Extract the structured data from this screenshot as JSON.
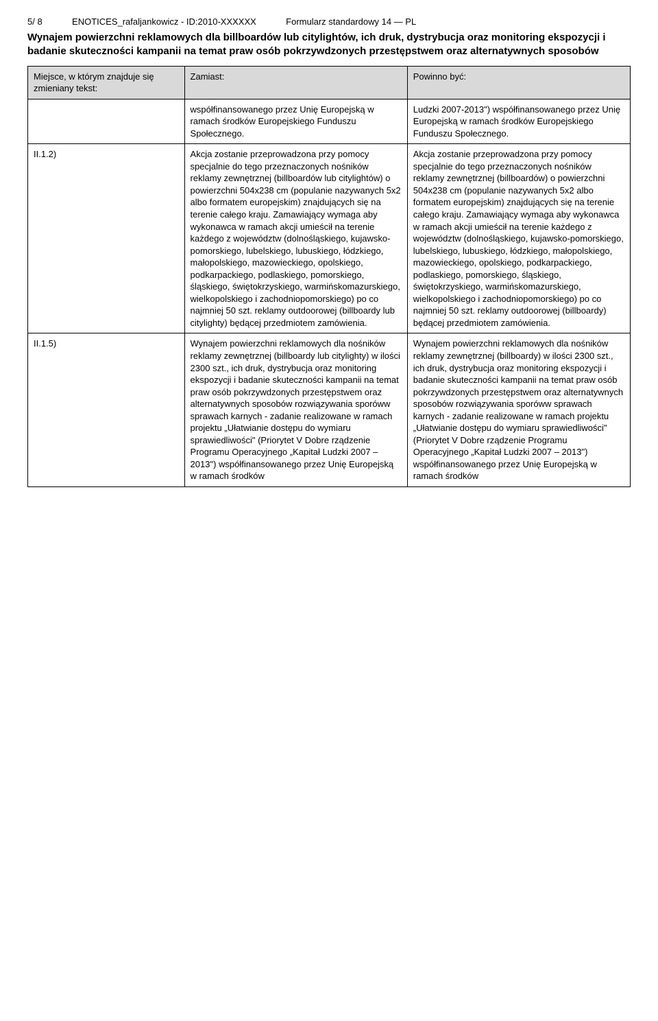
{
  "header": {
    "pageinfo": "5/ 8",
    "docref": "ENOTICES_rafaljankowicz - ID:2010-XXXXXX",
    "formlabel": "Formularz standardowy 14 — PL",
    "title": "Wynajem powierzchni reklamowych dla billboardów lub citylightów, ich druk, dystrybucja oraz monitoring ekspozycji i badanie skuteczności kampanii na temat praw osób pokrzywdzonych przestępstwem oraz alternatywnych sposobów"
  },
  "table": {
    "columns": [
      "Miejsce, w którym znajduje się zmieniany tekst:",
      "Zamiast:",
      "Powinno być:"
    ],
    "rows": [
      {
        "place": "",
        "instead": "współfinansowanego przez Unię Europejską w ramach środków Europejskiego Funduszu Społecznego.",
        "should": "Ludzki 2007-2013\") współfinansowanego przez Unię Europejską w ramach środków Europejskiego Funduszu Społecznego."
      },
      {
        "place": "II.1.2)",
        "instead": "Akcja zostanie przeprowadzona przy pomocy specjalnie do tego przeznaczonych nośników reklamy\nzewnętrznej (billboardów lub citylightów) o powierzchni 504x238 cm (populanie nazywanych 5x2 albo formatem europejskim) znajdujących się na terenie całego kraju. Zamawiający wymaga aby\nwykonawca w ramach akcji umieścił\nna terenie każdego z województw\n(dolnośląskiego, kujawsko-pomorskiego,\nlubelskiego, lubuskiego, łódzkiego,\nmałopolskiego, mazowieckiego, opolskiego, podkarpackiego, podlaskiego, pomorskiego, śląskiego, świętokrzyskiego, warmińskomazurskiego, wielkopolskiego i\nzachodniopomorskiego) po co najmniej\n50 szt. reklamy outdoorowej (billboardy\nlub citylighty) będącej przedmiotem\nzamówienia.",
        "should": "Akcja zostanie przeprowadzona przy pomocy specjalnie do tego przeznaczonych nośników reklamy\nzewnętrznej (billboardów) o powierzchni 504x238 cm (populanie nazywanych 5x2\nalbo formatem europejskim) znajdujących się na terenie całego kraju. Zamawiający wymaga aby wykonawca w ramach akcji umieścił na terenie każdego z województw (dolnośląskiego, kujawsko-pomorskiego, lubelskiego, lubuskiego, łódzkiego, małopolskiego, mazowieckiego, opolskiego, podkarpackiego, podlaskiego, pomorskiego, śląskiego, świętokrzyskiego, warmińskomazurskiego, wielkopolskiego i\nzachodniopomorskiego) po co najmniej\n50 szt. reklamy outdoorowej (billboardy) będącej przedmiotem\nzamówienia."
      },
      {
        "place": "II.1.5)",
        "instead": "Wynajem powierzchni reklamowych dla nośników reklamy zewnętrznej (billboardy lub citylighty) w ilości 2300 szt., ich druk, dystrybucja oraz monitoring ekspozycji i badanie skuteczności kampanii na temat praw osób pokrzywdzonych przestępstwem oraz alternatywnych sposobów rozwiązywania sporóww sprawach karnych - zadanie realizowane w ramach projektu „Ułatwianie dostępu do wymiaru sprawiedliwości\" (Priorytet V Dobre rządzenie Programu Operacyjnego „Kapitał Ludzki 2007 – 2013\") współfinansowanego przez Unię Europejską w ramach środków",
        "should": "Wynajem powierzchni reklamowych dla nośników reklamy zewnętrznej (billboardy) w ilości 2300 szt., ich druk, dystrybucja oraz monitoring ekspozycji i badanie skuteczności kampanii na temat praw osób pokrzywdzonych przestępstwem oraz alternatywnych sposobów rozwiązywania sporóww sprawach karnych - zadanie realizowane w ramach projektu „Ułatwianie dostępu do wymiaru sprawiedliwości\" (Priorytet V Dobre rządzenie Programu Operacyjnego „Kapitał Ludzki 2007 – 2013\") współfinansowanego przez Unię Europejską w ramach środków"
      }
    ]
  },
  "style": {
    "header_bg": "#d9d9d9",
    "border_color": "#000000",
    "font_size_body": 13,
    "font_size_title": 15
  }
}
